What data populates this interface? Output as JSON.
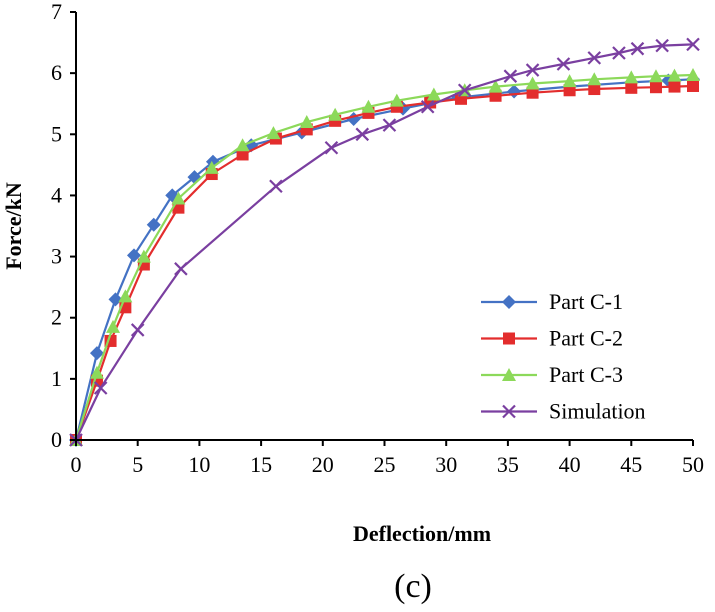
{
  "chart_data": {
    "type": "line",
    "title": "",
    "xlabel": "Deflection/mm",
    "ylabel": "Force/kN",
    "xlim": [
      0,
      50
    ],
    "ylim": [
      0,
      7
    ],
    "xticks": [
      0,
      5,
      10,
      15,
      20,
      25,
      30,
      35,
      40,
      45,
      50
    ],
    "yticks": [
      0,
      1,
      2,
      3,
      4,
      5,
      6,
      7
    ],
    "grid": false,
    "legend_position": "bottom-right",
    "caption": "(c)",
    "series": [
      {
        "name": "Part C-1",
        "color": "#4472C4",
        "marker": "diamond",
        "x": [
          0,
          1.7,
          3.2,
          4.7,
          6.3,
          7.8,
          9.6,
          11.1,
          14.2,
          18.3,
          22.5,
          26.5,
          31.0,
          35.5,
          40.0,
          45.0,
          48.0,
          50.0
        ],
        "y": [
          0,
          1.42,
          2.3,
          3.02,
          3.52,
          4.0,
          4.3,
          4.55,
          4.82,
          5.03,
          5.25,
          5.42,
          5.6,
          5.7,
          5.78,
          5.85,
          5.88,
          5.9
        ]
      },
      {
        "name": "Part C-2",
        "color": "#E32D2D",
        "marker": "square",
        "x": [
          0,
          1.7,
          2.8,
          4.0,
          5.5,
          8.3,
          11.0,
          13.5,
          16.2,
          18.7,
          21.0,
          23.7,
          26.0,
          28.7,
          31.2,
          34.0,
          37.0,
          40.0,
          42.0,
          45.0,
          47.0,
          48.5,
          50.0
        ],
        "y": [
          0,
          0.97,
          1.62,
          2.17,
          2.87,
          3.8,
          4.35,
          4.67,
          4.93,
          5.08,
          5.22,
          5.35,
          5.45,
          5.52,
          5.58,
          5.63,
          5.68,
          5.72,
          5.74,
          5.76,
          5.77,
          5.78,
          5.79
        ]
      },
      {
        "name": "Part C-3",
        "color": "#8CD95A",
        "marker": "triangle",
        "x": [
          0,
          1.7,
          3.0,
          4.0,
          5.5,
          8.3,
          11.0,
          13.5,
          16.0,
          18.7,
          21.0,
          23.7,
          26.0,
          29.0,
          31.5,
          34.0,
          37.0,
          40.0,
          42.0,
          45.0,
          47.0,
          48.5,
          50.0
        ],
        "y": [
          0,
          1.1,
          1.85,
          2.35,
          3.0,
          3.95,
          4.45,
          4.82,
          5.02,
          5.2,
          5.32,
          5.45,
          5.55,
          5.65,
          5.72,
          5.78,
          5.83,
          5.87,
          5.9,
          5.93,
          5.95,
          5.96,
          5.97
        ]
      },
      {
        "name": "Simulation",
        "color": "#7A3FA0",
        "marker": "x",
        "x": [
          0,
          2.0,
          5.0,
          8.5,
          16.2,
          20.7,
          23.2,
          25.4,
          28.5,
          31.5,
          35.2,
          37.0,
          39.5,
          42.0,
          44.0,
          45.5,
          47.5,
          50.0
        ],
        "y": [
          0,
          0.85,
          1.8,
          2.8,
          4.15,
          4.78,
          5.0,
          5.15,
          5.45,
          5.72,
          5.95,
          6.05,
          6.15,
          6.25,
          6.33,
          6.4,
          6.45,
          6.47
        ]
      }
    ]
  }
}
